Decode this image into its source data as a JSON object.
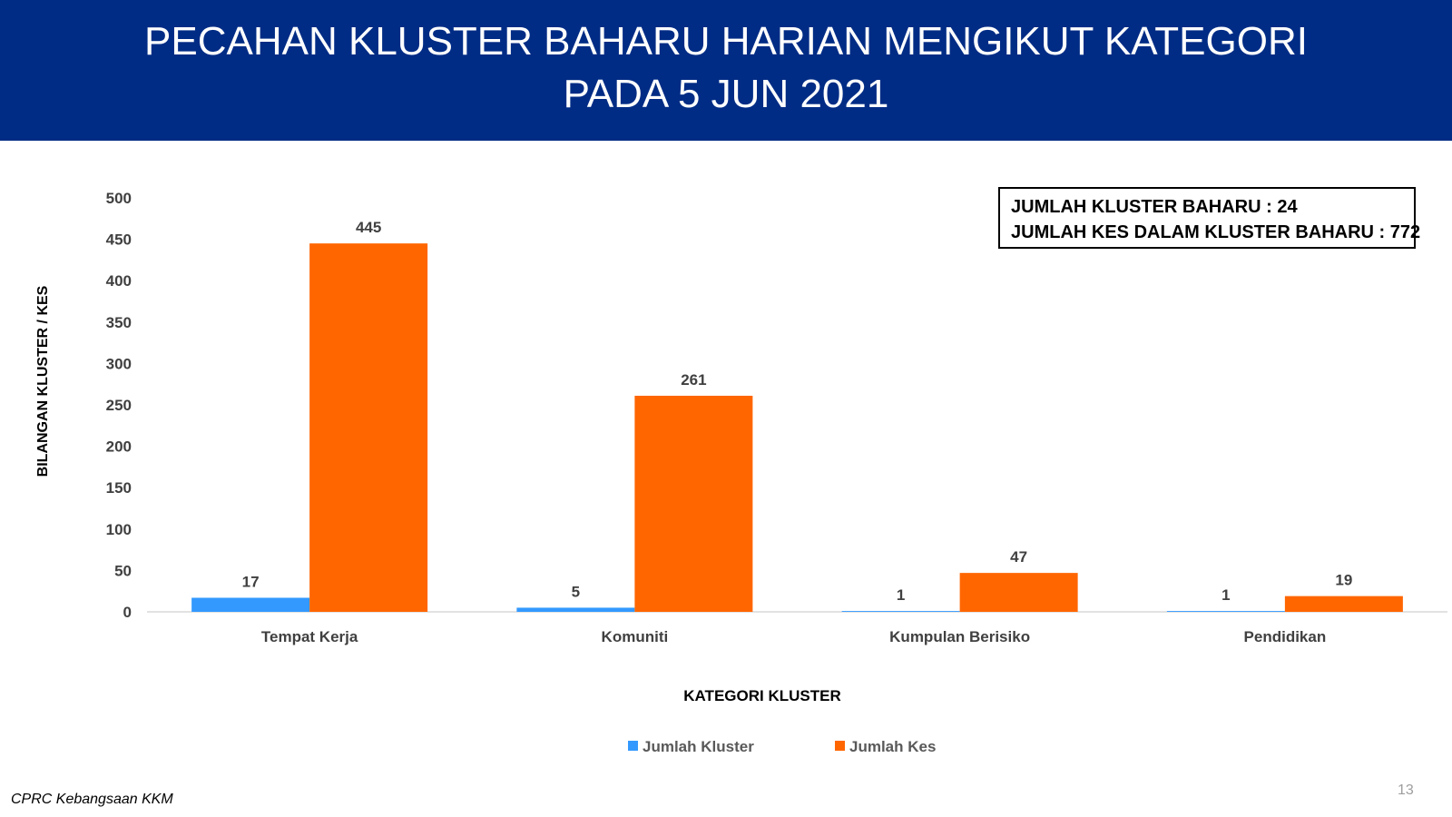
{
  "header": {
    "title_line1": "PECAHAN KLUSTER BAHARU HARIAN MENGIKUT KATEGORI",
    "title_line2": "PADA 5 JUN 2021"
  },
  "summary": {
    "line1": "JUMLAH KLUSTER BAHARU : 24",
    "line2": "JUMLAH KES DALAM KLUSTER BAHARU : 772"
  },
  "footer": {
    "source": "CPRC Kebangsaan KKM",
    "page_number": "13"
  },
  "colors": {
    "header_bg": "#012c85",
    "series_kluster": "#3399ff",
    "series_kes": "#ff6600"
  },
  "chart_data": {
    "type": "bar",
    "title": "",
    "xlabel": "KATEGORI KLUSTER",
    "ylabel": "BILANGAN KLUSTER / KES",
    "ylim": [
      0,
      500
    ],
    "yticks": [
      0,
      50,
      100,
      150,
      200,
      250,
      300,
      350,
      400,
      450,
      500
    ],
    "grid": false,
    "legend_position": "bottom",
    "categories": [
      "Tempat Kerja",
      "Komuniti",
      "Kumpulan Berisiko",
      "Pendidikan"
    ],
    "series": [
      {
        "name": "Jumlah Kluster",
        "color": "#3399ff",
        "values": [
          17,
          5,
          1,
          1
        ]
      },
      {
        "name": "Jumlah Kes",
        "color": "#ff6600",
        "values": [
          445,
          261,
          47,
          19
        ]
      }
    ]
  }
}
